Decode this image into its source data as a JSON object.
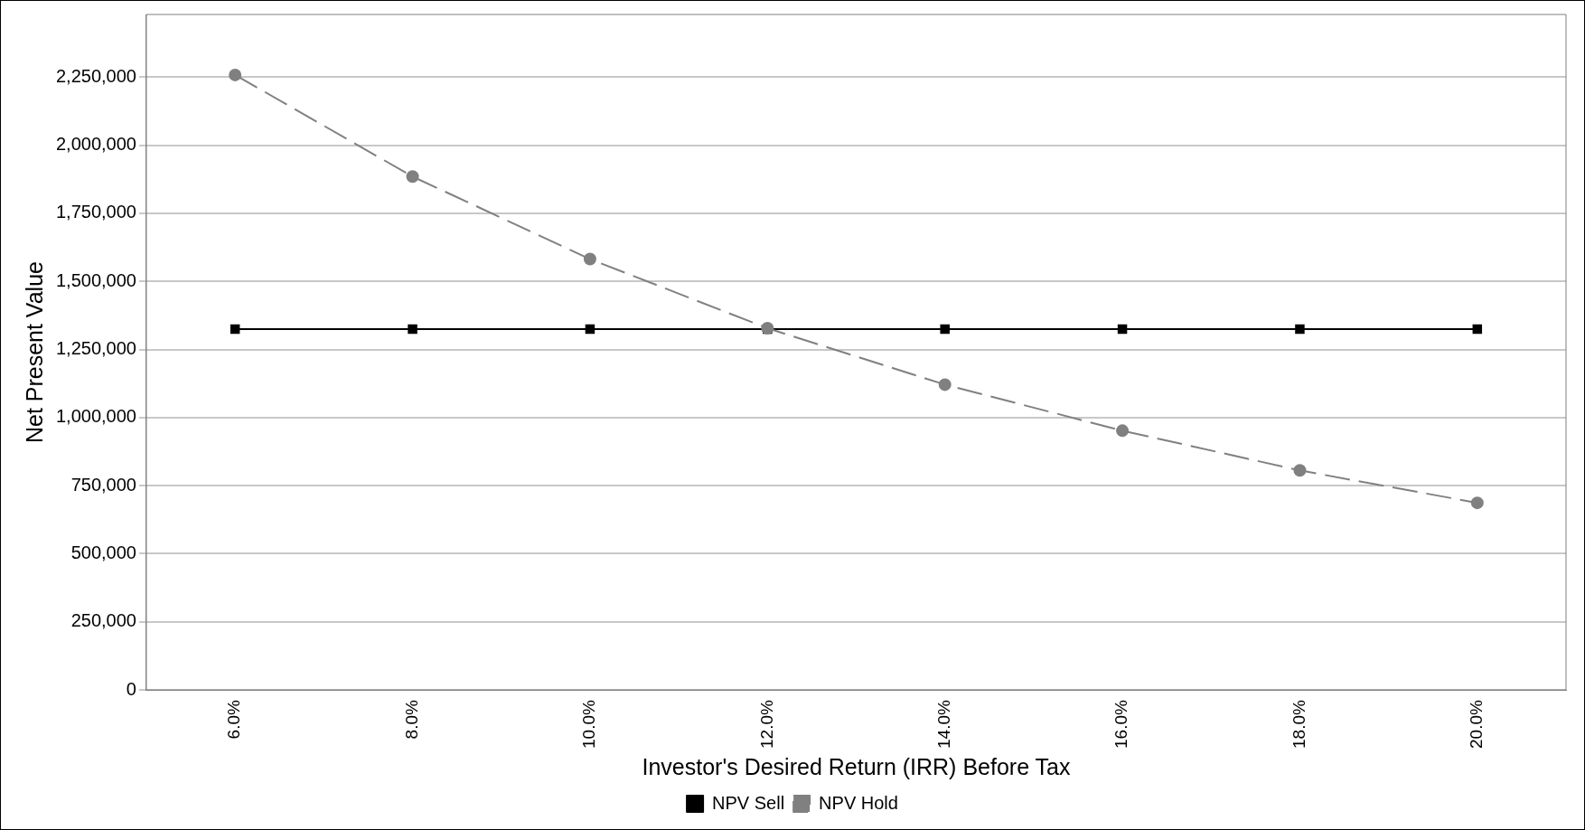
{
  "chart_data": {
    "type": "line",
    "xlabel": "Investor's Desired Return (IRR) Before Tax",
    "ylabel": "Net Present Value",
    "categories": [
      "6.0%",
      "8.0%",
      "10.0%",
      "12.0%",
      "14.0%",
      "16.0%",
      "18.0%",
      "20.0%"
    ],
    "series": [
      {
        "name": "NPV Sell",
        "color": "#000000",
        "marker": "square",
        "line_style": "solid",
        "values": [
          1325000,
          1325000,
          1325000,
          1325000,
          1325000,
          1325000,
          1325000,
          1325000
        ]
      },
      {
        "name": "NPV Hold",
        "color": "#808080",
        "marker": "circle",
        "line_style": "dashed",
        "values": [
          2258000,
          1885000,
          1582000,
          1328000,
          1121000,
          952000,
          806000,
          687000
        ]
      }
    ],
    "ylim": [
      0,
      2480000
    ],
    "yticks": [
      0,
      {
        "value": 250000,
        "label": "250,000"
      },
      {
        "value": 500000,
        "label": "500,000"
      },
      {
        "value": 750000,
        "label": "750,000"
      },
      {
        "value": 1000000,
        "label": "1,000,000"
      },
      {
        "value": 1250000,
        "label": "1,250,000"
      },
      {
        "value": 1500000,
        "label": "1,500,000"
      },
      {
        "value": 1750000,
        "label": "1,750,000"
      },
      {
        "value": 2000000,
        "label": "2,000,000"
      },
      {
        "value": 2250000,
        "label": "2,250,000"
      }
    ],
    "grid": "y",
    "legend": "bottom"
  }
}
